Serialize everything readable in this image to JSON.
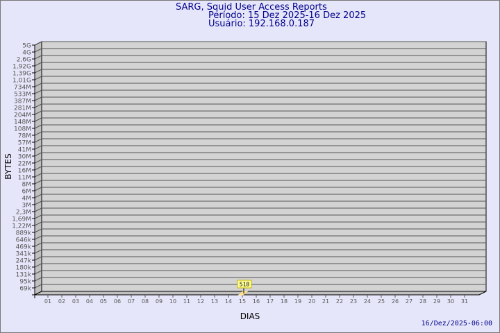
{
  "header": {
    "title": "SARG, Squid User Access Reports",
    "period": "Período: 15 Dez 2025-16 Dez 2025",
    "user": "Usuário: 192.168.0.187"
  },
  "footer": {
    "timestamp": "16/Dez/2025-06:00"
  },
  "colors": {
    "background": "#e6e6fa",
    "plot": "#d3d3d3",
    "title": "#00008b",
    "label_box": "#ffff99",
    "bar": "#ffe08a"
  },
  "chart_data": {
    "type": "bar",
    "xlabel": "DIAS",
    "ylabel": "BYTES",
    "y_scale": "log",
    "grid": true,
    "y_tick_labels": [
      "5G",
      "4G",
      "2,6G",
      "1,92G",
      "1,39G",
      "1,01G",
      "734M",
      "533M",
      "387M",
      "281M",
      "204M",
      "148M",
      "108M",
      "78M",
      "57M",
      "41M",
      "30M",
      "22M",
      "16M",
      "11M",
      "8M",
      "6M",
      "4M",
      "3M",
      "2,3M",
      "1,69M",
      "1,22M",
      "889k",
      "646k",
      "469k",
      "341k",
      "247k",
      "180k",
      "131k",
      "95k",
      "69k"
    ],
    "categories": [
      "01",
      "02",
      "03",
      "04",
      "05",
      "06",
      "07",
      "08",
      "09",
      "10",
      "11",
      "12",
      "13",
      "14",
      "15",
      "16",
      "17",
      "18",
      "19",
      "20",
      "21",
      "22",
      "23",
      "24",
      "25",
      "26",
      "27",
      "28",
      "29",
      "30",
      "31"
    ],
    "values": [
      0,
      0,
      0,
      0,
      0,
      0,
      0,
      0,
      0,
      0,
      0,
      0,
      0,
      0,
      518,
      0,
      0,
      0,
      0,
      0,
      0,
      0,
      0,
      0,
      0,
      0,
      0,
      0,
      0,
      0,
      0
    ],
    "data_labels": [
      {
        "category": "15",
        "label": "518"
      }
    ]
  }
}
